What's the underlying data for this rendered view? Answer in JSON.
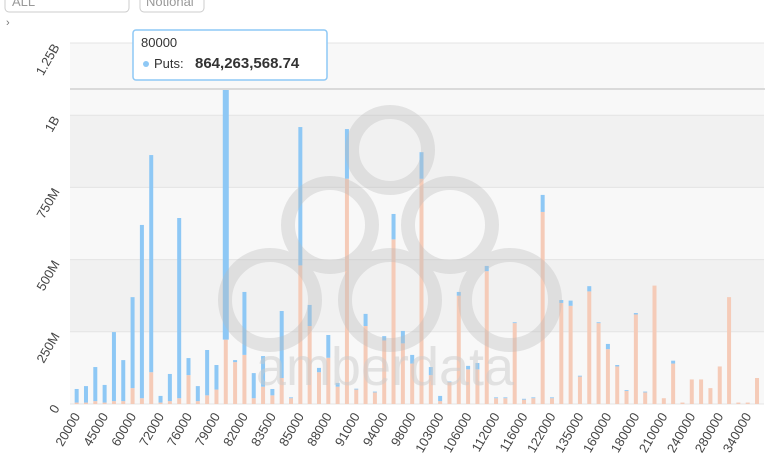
{
  "controls": [
    "ALL",
    "Notional"
  ],
  "chart_data": {
    "type": "stacked-bar",
    "categories": [
      "20000",
      null,
      null,
      "45000",
      null,
      null,
      "60000",
      null,
      null,
      "72000",
      null,
      null,
      "76000",
      null,
      null,
      "79000",
      null,
      null,
      "82000",
      null,
      null,
      "83500",
      null,
      null,
      "85000",
      null,
      null,
      "88000",
      null,
      null,
      "91000",
      null,
      null,
      "94000",
      null,
      null,
      "98000",
      null,
      null,
      "103000",
      null,
      null,
      "106000",
      null,
      null,
      "112000",
      null,
      null,
      "116000",
      null,
      null,
      "122000",
      null,
      null,
      "135000",
      null,
      null,
      "160000",
      null,
      null,
      "180000",
      null,
      null,
      "210000",
      null,
      null,
      "240000",
      null,
      null,
      "280000",
      null,
      null,
      "340000",
      null
    ],
    "series": [
      {
        "color": "#f5cbb8",
        "values": [
          5000000,
          5000000,
          10000000,
          5000000,
          10000000,
          10000000,
          55000000,
          20000000,
          110000000,
          5000000,
          10000000,
          20000000,
          100000000,
          10000000,
          30000000,
          50000000,
          223000000,
          145000000,
          170000000,
          20000000,
          60000000,
          30000000,
          90000000,
          20000000,
          480000000,
          270000000,
          110000000,
          160000000,
          60000000,
          780000000,
          50000000,
          270000000,
          40000000,
          220000000,
          570000000,
          210000000,
          140000000,
          780000000,
          100000000,
          10000000,
          75000000,
          375000000,
          120000000,
          120000000,
          460000000,
          20000000,
          20000000,
          280000000,
          15000000,
          20000000,
          665000000,
          20000000,
          350000000,
          340000000,
          95000000,
          390000000,
          280000000,
          190000000,
          130000000,
          45000000,
          310000000,
          40000000,
          410000000,
          20000000,
          140000000,
          5000000,
          85000000,
          85000000,
          55000000,
          130000000,
          370000000,
          5000000,
          5000000,
          90000000
        ]
      },
      {
        "color": "#8ec8f5",
        "values": [
          47000000,
          57000000,
          118000000,
          61000000,
          239000000,
          142000000,
          315000000,
          600000000,
          752000000,
          23000000,
          94000000,
          624000000,
          59000000,
          52000000,
          157000000,
          85000000,
          864263568.74,
          7000000,
          218000000,
          87000000,
          106000000,
          22000000,
          232000000,
          3000000,
          479000000,
          73000000,
          15000000,
          79000000,
          13000000,
          172000000,
          3000000,
          42000000,
          3000000,
          15000000,
          88000000,
          43000000,
          30000000,
          92000000,
          28000000,
          18000000,
          3000000,
          13000000,
          12000000,
          22000000,
          18000000,
          3000000,
          3000000,
          3000000,
          3000000,
          3000000,
          59000000,
          3000000,
          10000000,
          18000000,
          3000000,
          18000000,
          3000000,
          18000000,
          5000000,
          3000000,
          5000000,
          3000000,
          0,
          0,
          10000000,
          0,
          0,
          0,
          0,
          0,
          0,
          0,
          0,
          0
        ]
      }
    ],
    "ylim": [
      0,
      1250000000
    ],
    "yticks": [
      0,
      {
        "value": 250000000,
        "label": "250M"
      },
      {
        "value": 500000000,
        "label": "500M"
      },
      {
        "value": 750000000,
        "label": "750M"
      },
      {
        "value": 1000000000,
        "label": "1B"
      },
      {
        "value": 1250000000,
        "label": "1.25B"
      }
    ],
    "grid": true,
    "watermark": "amberdata",
    "tooltip": {
      "category": "80000",
      "label": "Puts:",
      "value_label": "864,263,568.74",
      "index": 16,
      "series": 1
    }
  }
}
